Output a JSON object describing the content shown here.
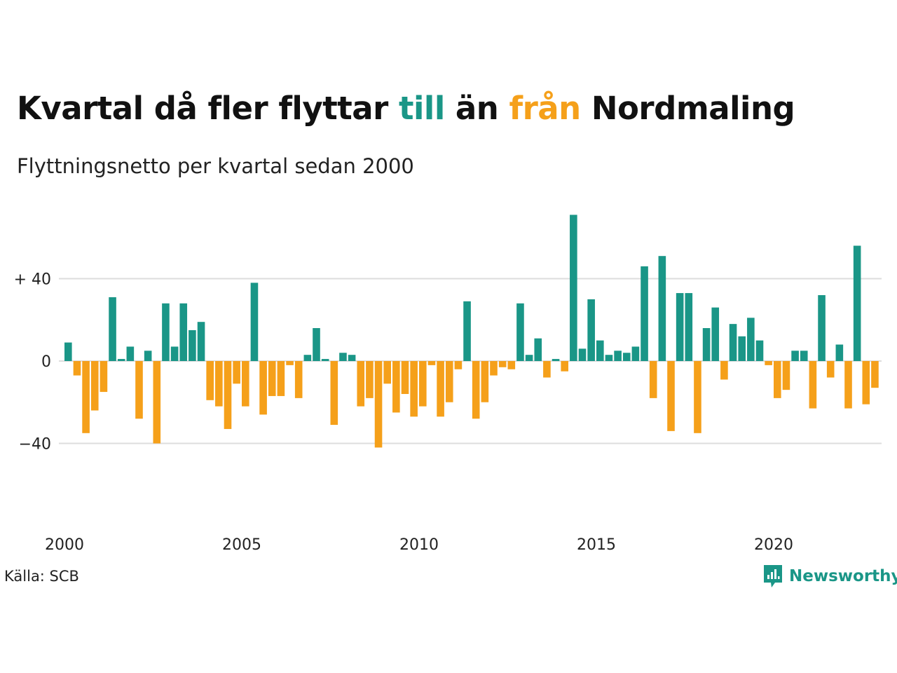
{
  "title": {
    "part1": "Kvartal då fler flyttar ",
    "till": "till",
    "part2": " än ",
    "fran": "från",
    "part3": " Nordmaling"
  },
  "subtitle": "Flyttningsnetto per kvartal sedan 2000",
  "source": "Källa: SCB",
  "brand": "Newsworthy",
  "colors": {
    "positive": "#1a9687",
    "negative": "#f5a01a",
    "grid": "#dddddd"
  },
  "chart_data": {
    "type": "bar",
    "start_year": 2000,
    "periods_per_year": 4,
    "values": [
      9,
      -7,
      -35,
      -24,
      -15,
      31,
      1,
      7,
      -28,
      5,
      -40,
      28,
      7,
      28,
      15,
      19,
      -19,
      -22,
      -33,
      -11,
      -22,
      38,
      -26,
      -17,
      -17,
      -2,
      -18,
      3,
      16,
      1,
      -31,
      4,
      3,
      -22,
      -18,
      -42,
      -11,
      -25,
      -16,
      -27,
      -22,
      -2,
      -27,
      -20,
      -4,
      29,
      -28,
      -20,
      -7,
      -3,
      -4,
      28,
      3,
      11,
      -8,
      1,
      -5,
      71,
      6,
      30,
      10,
      3,
      5,
      4,
      7,
      46,
      -18,
      51,
      -34,
      33,
      33,
      -35,
      16,
      26,
      -9,
      18,
      12,
      21,
      10,
      -2,
      -18,
      -14,
      5,
      5,
      -23,
      32,
      -8,
      8,
      -23,
      56,
      -21,
      -13
    ],
    "y_ticks": [
      {
        "value": 40,
        "label": "+ 40"
      },
      {
        "value": 0,
        "label": "0"
      },
      {
        "value": -40,
        "label": "−40"
      }
    ],
    "x_ticks": [
      {
        "value": 2000,
        "label": "2000"
      },
      {
        "value": 2005,
        "label": "2005"
      },
      {
        "value": 2010,
        "label": "2010"
      },
      {
        "value": 2015,
        "label": "2015"
      },
      {
        "value": 2020,
        "label": "2020"
      }
    ],
    "ylim": [
      -75,
      75
    ],
    "grid": true,
    "legend": "none"
  }
}
